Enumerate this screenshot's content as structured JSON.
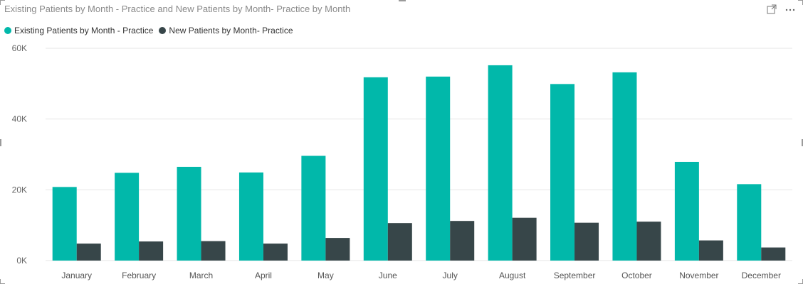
{
  "visual": {
    "title": "Existing Patients by Month - Practice and New Patients by Month- Practice by Month",
    "focus_icon": "focus-mode-icon",
    "more_icon": "more-options-icon"
  },
  "chart_data": {
    "type": "bar",
    "title": "Existing Patients by Month - Practice and New Patients by Month- Practice by Month",
    "xlabel": "",
    "ylabel": "",
    "categories": [
      "January",
      "February",
      "March",
      "April",
      "May",
      "June",
      "July",
      "August",
      "September",
      "October",
      "November",
      "December"
    ],
    "series": [
      {
        "name": "Existing Patients by Month - Practice",
        "color": "#01b8aa",
        "values": [
          20800,
          24800,
          26500,
          24900,
          29600,
          51800,
          52000,
          55200,
          49900,
          53200,
          27900,
          21600
        ]
      },
      {
        "name": "New Patients by Month- Practice",
        "color": "#374649",
        "values": [
          4800,
          5400,
          5500,
          4800,
          6400,
          10600,
          11200,
          12100,
          10700,
          11000,
          5700,
          3700
        ]
      }
    ],
    "yticks": [
      "0K",
      "20K",
      "40K",
      "60K"
    ],
    "ylim": [
      0,
      60000
    ],
    "grid": true,
    "legend_position": "top-left"
  }
}
